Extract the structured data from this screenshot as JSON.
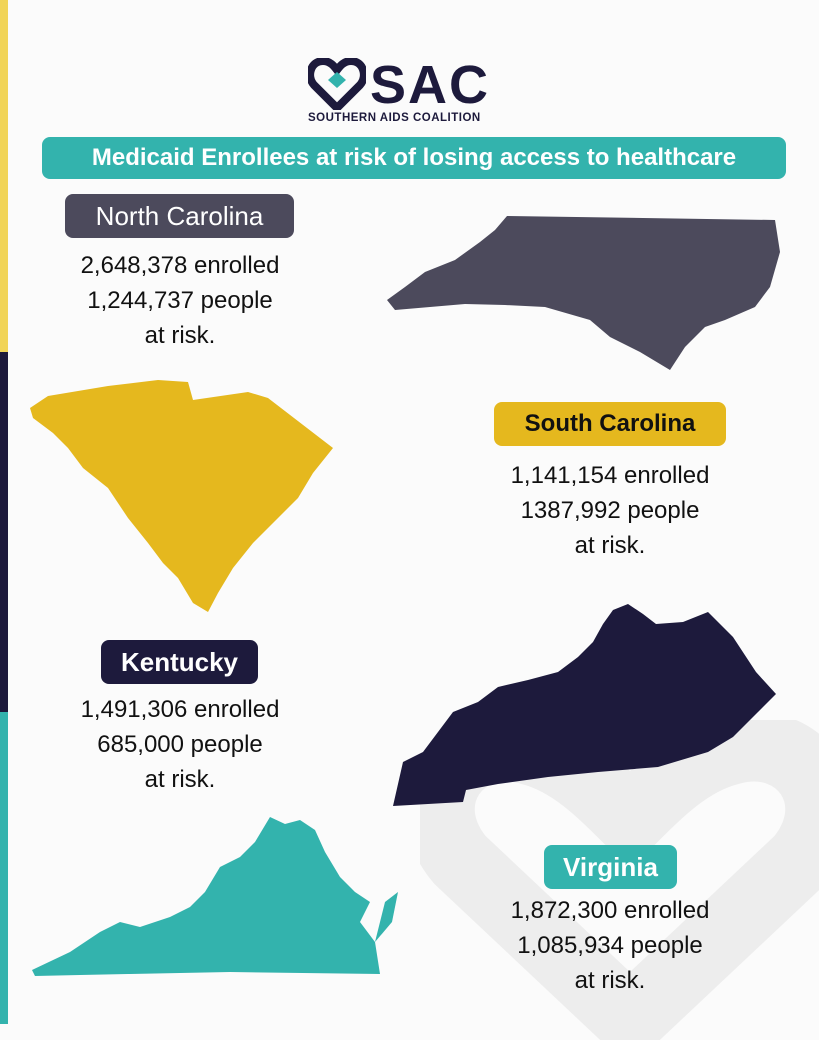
{
  "brand": {
    "logo_text": "SAC",
    "logo_subtitle": "SOUTHERN AIDS COALITION",
    "logo_icon": "heart-ribbon-icon"
  },
  "banner": {
    "title": "Medicaid Enrollees at risk of losing access to healthcare"
  },
  "colors": {
    "teal": "#33b3ad",
    "navy": "#1d1a3c",
    "yellow": "#e5b81e",
    "gray": "#4c4a5c"
  },
  "states": {
    "north_carolina": {
      "name": "North Carolina",
      "enrolled": "2,648,378 enrolled",
      "at_risk": "1,244,737 people",
      "at_risk_suffix": "at risk."
    },
    "south_carolina": {
      "name": "South Carolina",
      "enrolled": "1,141,154 enrolled",
      "at_risk": "1387,992 people",
      "at_risk_suffix": "at risk."
    },
    "kentucky": {
      "name": "Kentucky",
      "enrolled": "1,491,306 enrolled",
      "at_risk": "685,000 people",
      "at_risk_suffix": "at risk."
    },
    "virginia": {
      "name": "Virginia",
      "enrolled": "1,872,300 enrolled",
      "at_risk": "1,085,934 people",
      "at_risk_suffix": "at risk."
    }
  }
}
